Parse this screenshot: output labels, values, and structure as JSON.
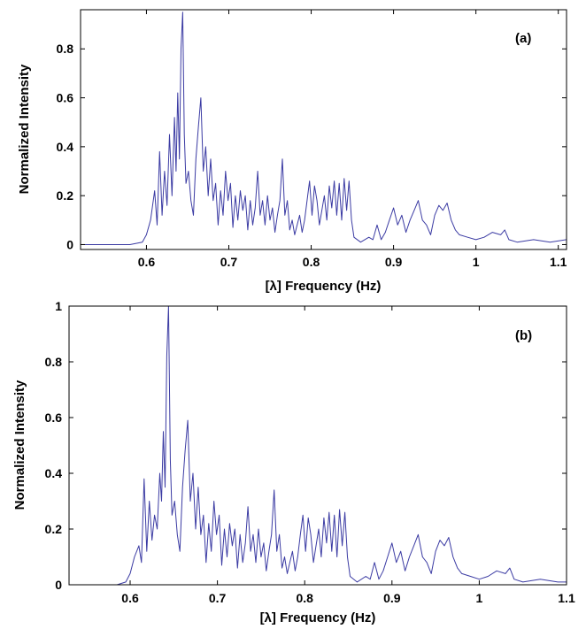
{
  "chart_data": [
    {
      "type": "line",
      "panel_label": "(a)",
      "xlabel": "[λ] Frequency (Hz)",
      "ylabel": "Normalized Intensity",
      "xlim": [
        0.52,
        1.11
      ],
      "ylim": [
        -0.02,
        0.96
      ],
      "xticks": [
        0.6,
        0.7,
        0.8,
        0.9,
        1,
        1.1
      ],
      "xtick_labels": [
        "0.6",
        "0.7",
        "0.8",
        "0.9",
        "1",
        "1.1"
      ],
      "yticks": [
        0,
        0.2,
        0.4,
        0.6,
        0.8
      ],
      "ytick_labels": [
        "0",
        "0.2",
        "0.4",
        "0.6",
        "0.8"
      ],
      "grid": false,
      "line_color": "#3b3ba3",
      "series": [
        {
          "x": [
            0.52,
            0.58,
            0.595,
            0.6,
            0.605,
            0.61,
            0.613,
            0.616,
            0.619,
            0.622,
            0.625,
            0.628,
            0.631,
            0.634,
            0.636,
            0.638,
            0.64,
            0.642,
            0.644,
            0.646,
            0.648,
            0.651,
            0.654,
            0.657,
            0.66,
            0.663,
            0.666,
            0.669,
            0.672,
            0.675,
            0.678,
            0.681,
            0.684,
            0.687,
            0.69,
            0.693,
            0.696,
            0.699,
            0.702,
            0.705,
            0.708,
            0.711,
            0.714,
            0.717,
            0.72,
            0.723,
            0.726,
            0.729,
            0.732,
            0.735,
            0.738,
            0.741,
            0.744,
            0.747,
            0.75,
            0.753,
            0.756,
            0.759,
            0.762,
            0.765,
            0.768,
            0.771,
            0.774,
            0.777,
            0.78,
            0.783,
            0.786,
            0.789,
            0.792,
            0.795,
            0.798,
            0.801,
            0.804,
            0.807,
            0.81,
            0.813,
            0.816,
            0.819,
            0.822,
            0.825,
            0.828,
            0.831,
            0.834,
            0.837,
            0.84,
            0.843,
            0.846,
            0.849,
            0.852,
            0.86,
            0.87,
            0.875,
            0.88,
            0.885,
            0.89,
            0.895,
            0.9,
            0.905,
            0.91,
            0.915,
            0.92,
            0.925,
            0.93,
            0.935,
            0.94,
            0.945,
            0.95,
            0.955,
            0.96,
            0.965,
            0.97,
            0.975,
            0.98,
            0.99,
            1.0,
            1.01,
            1.02,
            1.03,
            1.035,
            1.04,
            1.05,
            1.07,
            1.09,
            1.11
          ],
          "y": [
            0,
            0,
            0.01,
            0.04,
            0.1,
            0.22,
            0.08,
            0.38,
            0.12,
            0.3,
            0.16,
            0.45,
            0.2,
            0.52,
            0.3,
            0.62,
            0.35,
            0.8,
            0.95,
            0.45,
            0.25,
            0.3,
            0.18,
            0.12,
            0.35,
            0.48,
            0.6,
            0.3,
            0.4,
            0.2,
            0.35,
            0.18,
            0.25,
            0.08,
            0.22,
            0.12,
            0.3,
            0.18,
            0.25,
            0.07,
            0.2,
            0.1,
            0.22,
            0.14,
            0.2,
            0.06,
            0.18,
            0.08,
            0.15,
            0.3,
            0.12,
            0.18,
            0.08,
            0.2,
            0.1,
            0.15,
            0.05,
            0.12,
            0.18,
            0.35,
            0.12,
            0.18,
            0.06,
            0.1,
            0.04,
            0.08,
            0.12,
            0.05,
            0.1,
            0.18,
            0.26,
            0.12,
            0.24,
            0.18,
            0.08,
            0.14,
            0.2,
            0.1,
            0.24,
            0.15,
            0.26,
            0.12,
            0.25,
            0.1,
            0.27,
            0.14,
            0.26,
            0.1,
            0.03,
            0.01,
            0.03,
            0.02,
            0.08,
            0.02,
            0.05,
            0.1,
            0.15,
            0.08,
            0.12,
            0.05,
            0.1,
            0.14,
            0.18,
            0.1,
            0.08,
            0.04,
            0.12,
            0.16,
            0.14,
            0.17,
            0.1,
            0.06,
            0.04,
            0.03,
            0.02,
            0.03,
            0.05,
            0.04,
            0.06,
            0.02,
            0.01,
            0.02,
            0.01,
            0.02
          ]
        }
      ]
    },
    {
      "type": "line",
      "panel_label": "(b)",
      "xlabel": "[λ] Frequency (Hz)",
      "ylabel": "Normalized Intensity",
      "xlim": [
        0.53,
        1.1
      ],
      "ylim": [
        0,
        1
      ],
      "xticks": [
        0.6,
        0.7,
        0.8,
        0.9,
        1,
        1.1
      ],
      "xtick_labels": [
        "0.6",
        "0.7",
        "0.8",
        "0.9",
        "1",
        "1.1"
      ],
      "yticks": [
        0,
        0.2,
        0.4,
        0.6,
        0.8,
        1
      ],
      "ytick_labels": [
        "0",
        "0.2",
        "0.4",
        "0.6",
        "0.8",
        "1"
      ],
      "grid": false,
      "line_color": "#3b3ba3",
      "series": [
        {
          "x": [
            0.53,
            0.585,
            0.595,
            0.6,
            0.605,
            0.61,
            0.613,
            0.616,
            0.619,
            0.622,
            0.625,
            0.628,
            0.631,
            0.634,
            0.636,
            0.638,
            0.64,
            0.642,
            0.644,
            0.646,
            0.648,
            0.651,
            0.654,
            0.657,
            0.66,
            0.663,
            0.666,
            0.669,
            0.672,
            0.675,
            0.678,
            0.681,
            0.684,
            0.687,
            0.69,
            0.693,
            0.696,
            0.699,
            0.702,
            0.705,
            0.708,
            0.711,
            0.714,
            0.717,
            0.72,
            0.723,
            0.726,
            0.729,
            0.732,
            0.735,
            0.738,
            0.741,
            0.744,
            0.747,
            0.75,
            0.753,
            0.756,
            0.759,
            0.762,
            0.765,
            0.768,
            0.771,
            0.774,
            0.777,
            0.78,
            0.783,
            0.786,
            0.789,
            0.792,
            0.795,
            0.798,
            0.801,
            0.804,
            0.807,
            0.81,
            0.813,
            0.816,
            0.819,
            0.822,
            0.825,
            0.828,
            0.831,
            0.834,
            0.837,
            0.84,
            0.843,
            0.846,
            0.849,
            0.852,
            0.86,
            0.87,
            0.875,
            0.88,
            0.885,
            0.89,
            0.895,
            0.9,
            0.905,
            0.91,
            0.915,
            0.92,
            0.925,
            0.93,
            0.935,
            0.94,
            0.945,
            0.95,
            0.955,
            0.96,
            0.965,
            0.97,
            0.975,
            0.98,
            0.99,
            1.0,
            1.01,
            1.02,
            1.03,
            1.035,
            1.04,
            1.05,
            1.07,
            1.09,
            1.1
          ],
          "y": [
            0,
            0,
            0.01,
            0.04,
            0.1,
            0.14,
            0.08,
            0.38,
            0.12,
            0.3,
            0.16,
            0.25,
            0.2,
            0.4,
            0.3,
            0.55,
            0.35,
            0.82,
            1.0,
            0.45,
            0.25,
            0.3,
            0.18,
            0.12,
            0.35,
            0.48,
            0.59,
            0.3,
            0.4,
            0.2,
            0.35,
            0.18,
            0.25,
            0.08,
            0.22,
            0.12,
            0.3,
            0.18,
            0.25,
            0.07,
            0.2,
            0.1,
            0.22,
            0.14,
            0.2,
            0.06,
            0.18,
            0.08,
            0.15,
            0.28,
            0.12,
            0.18,
            0.08,
            0.2,
            0.1,
            0.15,
            0.05,
            0.12,
            0.18,
            0.34,
            0.12,
            0.18,
            0.06,
            0.1,
            0.04,
            0.08,
            0.12,
            0.05,
            0.1,
            0.18,
            0.25,
            0.12,
            0.24,
            0.18,
            0.08,
            0.14,
            0.2,
            0.1,
            0.24,
            0.15,
            0.26,
            0.12,
            0.25,
            0.1,
            0.27,
            0.14,
            0.26,
            0.1,
            0.03,
            0.01,
            0.03,
            0.02,
            0.08,
            0.02,
            0.05,
            0.1,
            0.15,
            0.08,
            0.12,
            0.05,
            0.1,
            0.14,
            0.18,
            0.1,
            0.08,
            0.04,
            0.12,
            0.16,
            0.14,
            0.17,
            0.1,
            0.06,
            0.04,
            0.03,
            0.02,
            0.03,
            0.05,
            0.04,
            0.06,
            0.02,
            0.01,
            0.02,
            0.01,
            0.01
          ]
        }
      ]
    }
  ]
}
